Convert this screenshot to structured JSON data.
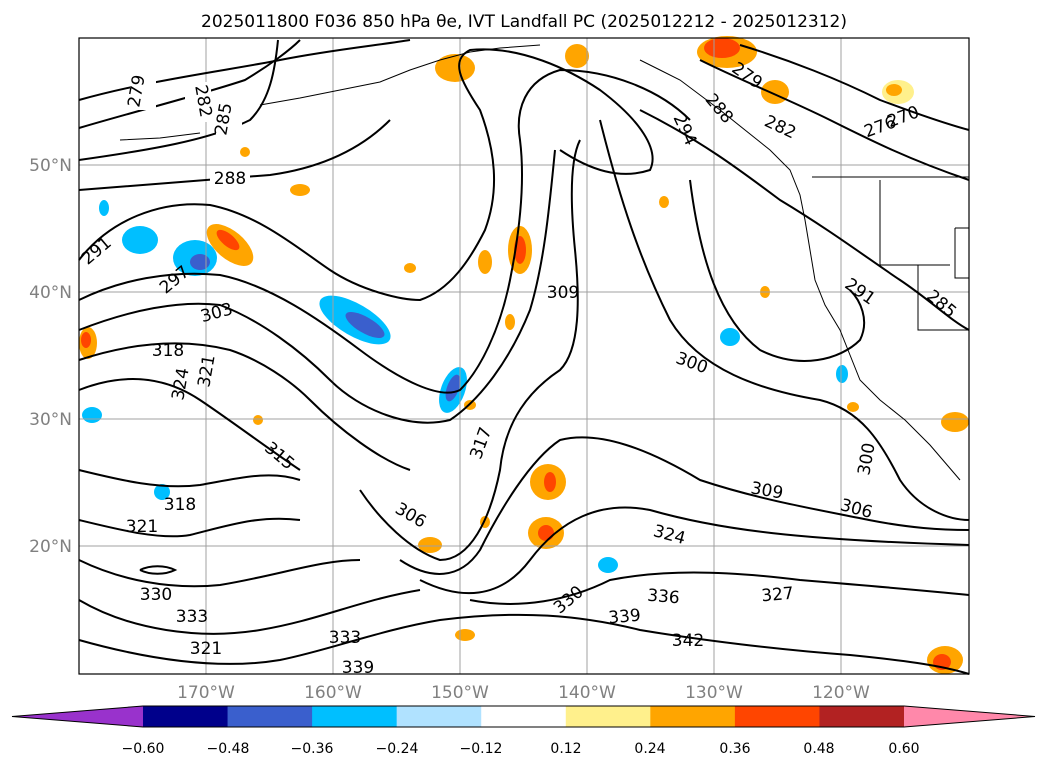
{
  "title": "2025011800 F036 850 hPa θe, IVT Landfall PC (2025012212 - 2025012312)",
  "map": {
    "lat_labels": [
      "50°N",
      "40°N",
      "30°N",
      "20°N"
    ],
    "lon_labels": [
      "170°W",
      "160°W",
      "150°W",
      "140°W",
      "130°W",
      "120°W"
    ],
    "theta_e_contour_labels": [
      "279",
      "282",
      "285",
      "288",
      "291",
      "297",
      "303",
      "318",
      "321",
      "324",
      "315",
      "318",
      "321",
      "330",
      "333",
      "321",
      "333",
      "339",
      "306",
      "317",
      "309",
      "300",
      "294",
      "288",
      "279",
      "282",
      "276",
      "270",
      "291",
      "285",
      "300",
      "309",
      "306",
      "324",
      "330",
      "336",
      "339",
      "342",
      "327"
    ],
    "contour_color": "#000000"
  },
  "colorbar": {
    "colors": [
      "#9932cc",
      "#00008b",
      "#3a5fcd",
      "#00bfff",
      "#b0e2ff",
      "#ffffff",
      "#fff08c",
      "#ffa500",
      "#ff4500",
      "#b22222",
      "#ff88aa"
    ],
    "tick_labels": [
      "−0.60",
      "−0.48",
      "−0.36",
      "−0.24",
      "−0.12",
      "0.12",
      "0.24",
      "0.36",
      "0.48",
      "0.60"
    ]
  }
}
